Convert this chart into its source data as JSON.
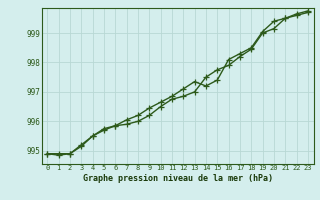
{
  "line1": [
    994.9,
    994.9,
    994.9,
    995.15,
    995.5,
    995.7,
    995.85,
    995.9,
    996.0,
    996.2,
    996.5,
    996.75,
    996.85,
    997.0,
    997.5,
    997.75,
    997.9,
    998.2,
    998.45,
    999.0,
    999.15,
    999.5,
    999.6,
    999.7
  ],
  "line2": [
    994.9,
    994.85,
    994.9,
    995.2,
    995.5,
    995.75,
    995.85,
    996.05,
    996.2,
    996.45,
    996.65,
    996.85,
    997.1,
    997.35,
    997.2,
    997.4,
    998.1,
    998.3,
    998.5,
    999.05,
    999.4,
    999.5,
    999.65,
    999.75
  ],
  "hours": [
    0,
    1,
    2,
    3,
    4,
    5,
    6,
    7,
    8,
    9,
    10,
    11,
    12,
    13,
    14,
    15,
    16,
    17,
    18,
    19,
    20,
    21,
    22,
    23
  ],
  "ylim": [
    994.55,
    999.85
  ],
  "yticks": [
    995,
    996,
    997,
    998,
    999
  ],
  "line_color": "#2d5a1b",
  "bg_color": "#d4eeed",
  "grid_color": "#b8d8d4",
  "xlabel": "Graphe pression niveau de la mer (hPa)",
  "marker": "+",
  "markersize": 4,
  "linewidth": 1.0
}
